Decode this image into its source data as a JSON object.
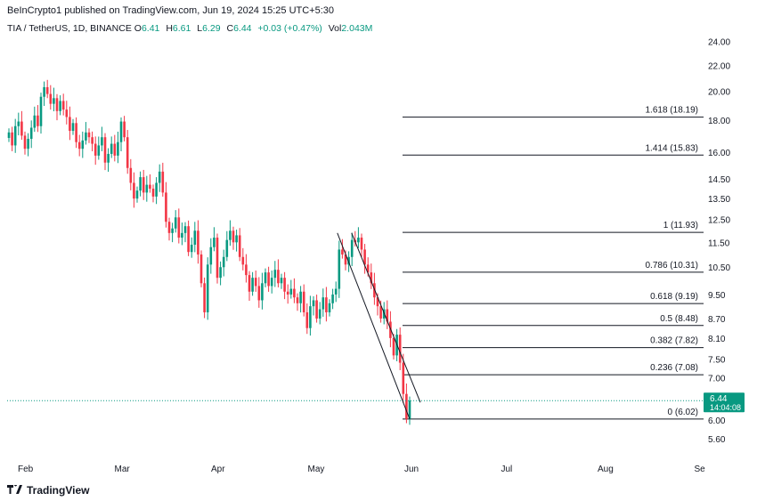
{
  "header": {
    "publisher": "BeInCrypto1 published on TradingView.com, Jun 19, 2024 15:25 UTC+5:30"
  },
  "symbol": {
    "name": "TIA / TetherUS, 1D, BINANCE",
    "open_label": "O",
    "open": "6.41",
    "high_label": "H",
    "high": "6.61",
    "low_label": "L",
    "low": "6.29",
    "close_label": "C",
    "close": "6.44",
    "change": "+0.03 (+0.47%)",
    "vol_label": "Vol",
    "volume": "2.043M"
  },
  "footer": {
    "brand": "TradingView",
    "logo_icon": "tradingview-logo-icon"
  },
  "colors": {
    "up": "#089981",
    "down": "#F23645",
    "line": "#131722",
    "price_tag": "#089981"
  },
  "chart_data": {
    "type": "candlestick",
    "y_scale": "log",
    "ylim": [
      5.3,
      25.5
    ],
    "y_ticks": [
      "24.00",
      "22.00",
      "20.00",
      "18.00",
      "16.00",
      "14.50",
      "13.50",
      "12.50",
      "11.50",
      "10.50",
      "9.50",
      "8.70",
      "8.10",
      "7.50",
      "7.00",
      "6.00",
      "5.60"
    ],
    "x_ticks": [
      "Feb",
      "Mar",
      "Apr",
      "May",
      "Jun",
      "Jul",
      "Aug",
      "Se"
    ],
    "last_price": {
      "value": "6.44",
      "countdown": "14:04:08"
    },
    "fib_levels": [
      {
        "label": "1.618 (18.19)",
        "value": 18.19
      },
      {
        "label": "1.414 (15.83)",
        "value": 15.83
      },
      {
        "label": "1 (11.93)",
        "value": 11.93
      },
      {
        "label": "0.786 (10.31)",
        "value": 10.31
      },
      {
        "label": "0.618 (9.19)",
        "value": 9.19
      },
      {
        "label": "0.5 (8.48)",
        "value": 8.48
      },
      {
        "label": "0.382 (7.82)",
        "value": 7.82
      },
      {
        "label": "0.236 (7.08)",
        "value": 7.08
      },
      {
        "label": "0 (6.02)",
        "value": 6.02
      }
    ],
    "closes": [
      17.2,
      16.4,
      17.6,
      17.9,
      17.0,
      16.2,
      16.8,
      17.5,
      18.3,
      17.6,
      19.6,
      20.3,
      19.8,
      19.1,
      19.5,
      18.6,
      19.3,
      18.7,
      18.2,
      17.3,
      17.8,
      16.6,
      16.2,
      16.7,
      17.2,
      16.9,
      16.5,
      15.8,
      16.4,
      16.9,
      15.4,
      15.9,
      16.5,
      15.8,
      16.6,
      17.9,
      16.9,
      15.1,
      14.3,
      13.5,
      13.9,
      14.6,
      13.8,
      14.2,
      14.0,
      13.6,
      14.3,
      14.9,
      13.8,
      12.4,
      11.9,
      12.1,
      12.6,
      11.7,
      11.9,
      12.2,
      11.1,
      11.4,
      12.0,
      11.0,
      9.9,
      8.9,
      10.6,
      11.3,
      11.7,
      10.1,
      10.5,
      10.9,
      11.6,
      12.0,
      11.5,
      11.8,
      10.9,
      10.6,
      10.2,
      9.6,
      10.1,
      9.8,
      9.3,
      9.9,
      10.3,
      9.8,
      10.1,
      10.4,
      9.9,
      10.1,
      9.6,
      9.5,
      9.7,
      9.4,
      9.2,
      9.6,
      8.9,
      8.4,
      9.1,
      9.3,
      8.7,
      9.0,
      9.4,
      8.9,
      9.2,
      9.5,
      9.7,
      11.2,
      11.0,
      10.6,
      10.9,
      11.6,
      11.5,
      11.7,
      11.2,
      10.6,
      10.3,
      9.9,
      9.4,
      9.1,
      8.7,
      9.0,
      8.6,
      8.1,
      7.6,
      8.2,
      7.4,
      6.6,
      6.02,
      6.44
    ]
  }
}
